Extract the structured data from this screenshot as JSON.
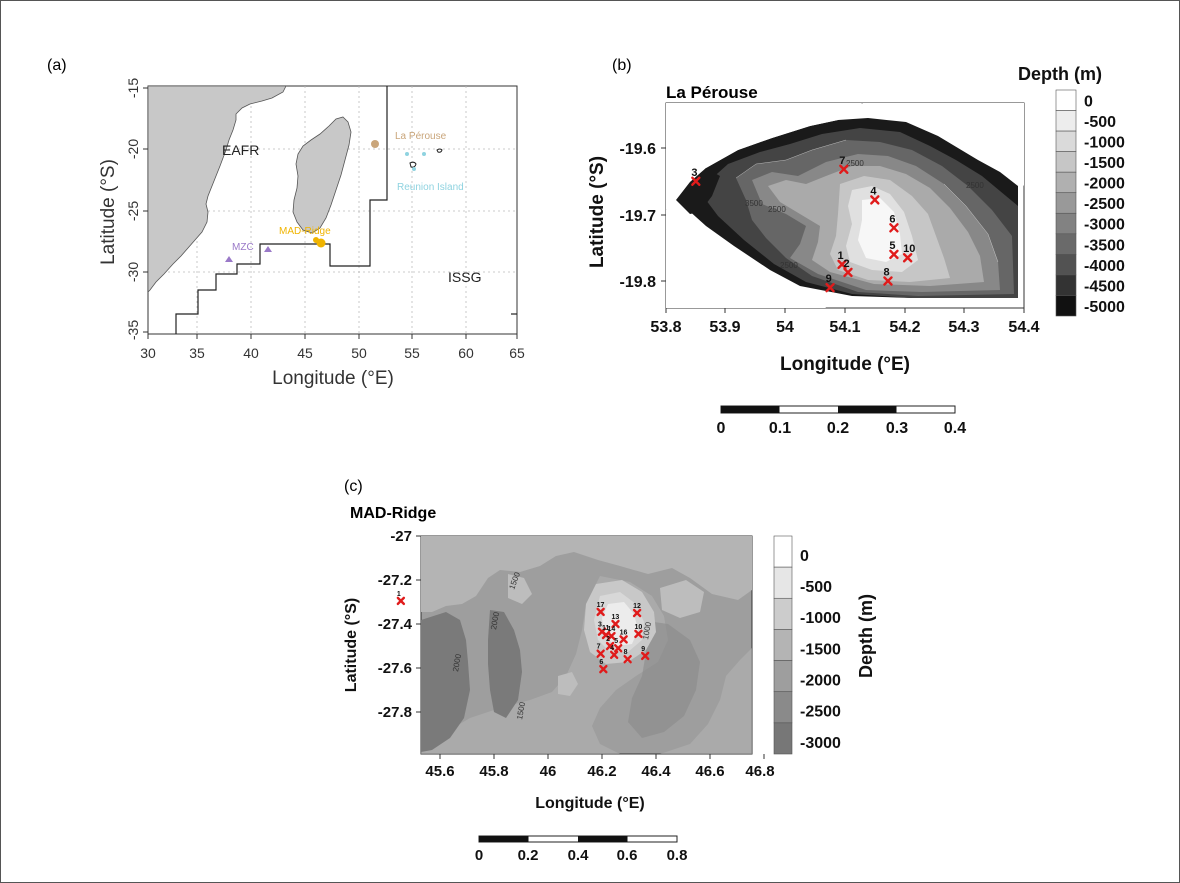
{
  "panel_a": {
    "letter": "(a)",
    "xlabel": "Longitude (°E)",
    "ylabel": "Latitude (°S)",
    "xticks": [
      "30",
      "35",
      "40",
      "45",
      "50",
      "55",
      "60",
      "65"
    ],
    "yticks": [
      "-15",
      "-20",
      "-25",
      "-30",
      "-35"
    ],
    "labels": {
      "eafr": "EAFR",
      "issg": "ISSG",
      "la_perouse": "La Pérouse",
      "reunion": "Reunion Island",
      "mad_ridge": "MAD-Ridge",
      "mzc": "MZC"
    },
    "colors": {
      "land": "#c8c8c8",
      "la_perouse": "#c9a57a",
      "reunion": "#8fd3e0",
      "mad_ridge": "#f0b400",
      "mzc": "#9a79c8"
    }
  },
  "panel_b": {
    "letter": "(b)",
    "title": "La Pérouse",
    "xlabel": "Longitude (°E)",
    "ylabel": "Latitude (°S)",
    "xticks": [
      "53.8",
      "53.9",
      "54",
      "54.1",
      "54.2",
      "54.3",
      "54.4"
    ],
    "yticks": [
      "-19.6",
      "-19.7",
      "-19.8"
    ],
    "legend_title": "Depth (m)",
    "legend": [
      "0",
      "-500",
      "-1000",
      "-1500",
      "-2000",
      "-2500",
      "-3000",
      "-3500",
      "-4000",
      "-4500",
      "-5000"
    ],
    "contour_labels": [
      "2500",
      "2500",
      "3500",
      "2500",
      "2500"
    ],
    "stations": [
      {
        "id": "1",
        "lon": 54.095,
        "lat": -19.775
      },
      {
        "id": "2",
        "lon": 54.105,
        "lat": -19.787
      },
      {
        "id": "3",
        "lon": 53.85,
        "lat": -19.65
      },
      {
        "id": "4",
        "lon": 54.15,
        "lat": -19.678
      },
      {
        "id": "5",
        "lon": 54.182,
        "lat": -19.76
      },
      {
        "id": "6",
        "lon": 54.182,
        "lat": -19.72
      },
      {
        "id": "7",
        "lon": 54.098,
        "lat": -19.632
      },
      {
        "id": "8",
        "lon": 54.172,
        "lat": -19.8
      },
      {
        "id": "9",
        "lon": 54.075,
        "lat": -19.81
      },
      {
        "id": "10",
        "lon": 54.205,
        "lat": -19.765
      }
    ],
    "scalebar": [
      "0",
      "0.1",
      "0.2",
      "0.3",
      "0.4"
    ]
  },
  "panel_c": {
    "letter": "(c)",
    "title": "MAD-Ridge",
    "xlabel": "Longitude (°E)",
    "ylabel": "Latitude (°S)",
    "xticks": [
      "45.6",
      "45.8",
      "46",
      "46.2",
      "46.4",
      "46.6",
      "46.8"
    ],
    "yticks": [
      "-27",
      "-27.2",
      "-27.4",
      "-27.6",
      "-27.8"
    ],
    "legend_title": "Depth (m)",
    "legend": [
      "0",
      "-500",
      "-1000",
      "-1500",
      "-2000",
      "-2500",
      "-3000"
    ],
    "contour_labels": [
      "1500",
      "2000",
      "2000",
      "1500",
      "1000"
    ],
    "stations": [
      {
        "id": "17",
        "lon": 46.195,
        "lat": -27.345
      },
      {
        "id": "12",
        "lon": 46.33,
        "lat": -27.35
      },
      {
        "id": "13",
        "lon": 46.25,
        "lat": -27.4
      },
      {
        "id": "3",
        "lon": 46.2,
        "lat": -27.435
      },
      {
        "id": "11",
        "lon": 46.215,
        "lat": -27.45
      },
      {
        "id": "14",
        "lon": 46.235,
        "lat": -27.455
      },
      {
        "id": "16",
        "lon": 46.28,
        "lat": -27.47
      },
      {
        "id": "10",
        "lon": 46.335,
        "lat": -27.445
      },
      {
        "id": "2",
        "lon": 46.23,
        "lat": -27.5
      },
      {
        "id": "5",
        "lon": 46.26,
        "lat": -27.51
      },
      {
        "id": "7",
        "lon": 46.195,
        "lat": -27.535
      },
      {
        "id": "4",
        "lon": 46.245,
        "lat": -27.54
      },
      {
        "id": "8",
        "lon": 46.295,
        "lat": -27.56
      },
      {
        "id": "9",
        "lon": 46.36,
        "lat": -27.545
      },
      {
        "id": "6",
        "lon": 46.205,
        "lat": -27.605
      },
      {
        "id": "1",
        "lon": 45.455,
        "lat": -27.295
      }
    ],
    "scalebar": [
      "0",
      "0.2",
      "0.4",
      "0.6",
      "0.8"
    ]
  }
}
